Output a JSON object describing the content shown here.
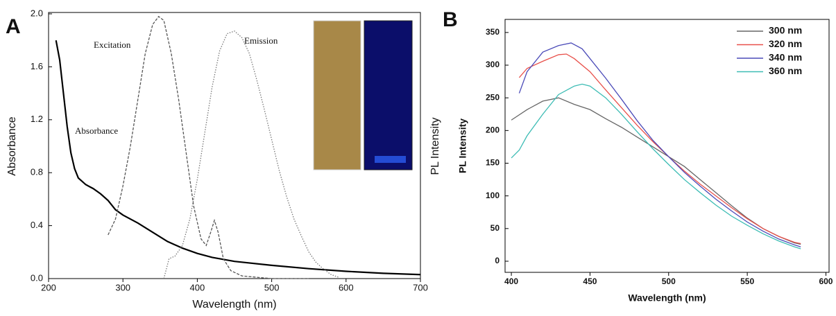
{
  "chart_data": [
    {
      "type": "line",
      "panel_label": "A",
      "x_label": "Wavelength (nm)",
      "y_label": "Absorbance",
      "y2_label": "PL Intensity",
      "xlim": [
        200,
        700
      ],
      "xticks": [
        200,
        300,
        400,
        500,
        600,
        700
      ],
      "ylim": [
        0,
        2.0
      ],
      "yticks": [
        {
          "value": 0,
          "label": "0.0"
        },
        0.4,
        0.8,
        1.2,
        1.6,
        {
          "value": 2,
          "label": "2.0"
        }
      ],
      "series": [
        {
          "name": "Absorbance",
          "color": "#000000",
          "dash": "solid",
          "x": [
            210,
            215,
            220,
            225,
            230,
            235,
            240,
            250,
            260,
            270,
            280,
            290,
            300,
            320,
            340,
            360,
            380,
            400,
            420,
            450,
            500,
            550,
            600,
            650,
            700
          ],
          "values": [
            1.8,
            1.65,
            1.4,
            1.15,
            0.95,
            0.83,
            0.76,
            0.71,
            0.68,
            0.64,
            0.59,
            0.52,
            0.48,
            0.42,
            0.35,
            0.28,
            0.23,
            0.19,
            0.16,
            0.13,
            0.1,
            0.075,
            0.055,
            0.04,
            0.03
          ]
        },
        {
          "name": "Excitation",
          "color": "#555555",
          "dash": "dashed",
          "x": [
            280,
            290,
            300,
            310,
            320,
            330,
            340,
            348,
            355,
            365,
            375,
            385,
            395,
            405,
            412,
            418,
            423,
            428,
            435,
            445,
            460,
            480,
            500,
            550
          ],
          "values": [
            0.33,
            0.45,
            0.7,
            1.0,
            1.35,
            1.7,
            1.92,
            1.98,
            1.95,
            1.7,
            1.35,
            0.95,
            0.55,
            0.3,
            0.25,
            0.35,
            0.44,
            0.35,
            0.15,
            0.06,
            0.02,
            0.01,
            0,
            0
          ]
        },
        {
          "name": "Emission",
          "color": "#777777",
          "dash": "dotted",
          "x": [
            355,
            362,
            370,
            380,
            390,
            400,
            410,
            420,
            430,
            440,
            450,
            460,
            470,
            480,
            490,
            500,
            510,
            520,
            530,
            540,
            550,
            560,
            570,
            580,
            590
          ],
          "values": [
            0,
            0.15,
            0.17,
            0.25,
            0.45,
            0.75,
            1.1,
            1.45,
            1.72,
            1.85,
            1.87,
            1.82,
            1.7,
            1.5,
            1.28,
            1.05,
            0.82,
            0.62,
            0.45,
            0.32,
            0.2,
            0.12,
            0.07,
            0.03,
            0.01
          ]
        }
      ]
    },
    {
      "type": "line",
      "panel_label": "B",
      "x_label": "Wavelength (nm)",
      "y_label": "PL Intensity",
      "legend": "upper right",
      "xlim": [
        396,
        602
      ],
      "xticks": [
        400,
        450,
        500,
        550,
        600
      ],
      "ylim": [
        -17,
        370
      ],
      "yticks": [
        0,
        50,
        100,
        150,
        200,
        250,
        300,
        350
      ],
      "series": [
        {
          "name": "300 nm",
          "color": "#666666",
          "dash": "solid",
          "x": [
            400,
            410,
            420,
            430,
            440,
            450,
            460,
            470,
            480,
            490,
            500,
            510,
            520,
            530,
            540,
            550,
            560,
            570,
            580,
            584
          ],
          "values": [
            216,
            232,
            245,
            250,
            240,
            232,
            218,
            205,
            190,
            175,
            160,
            145,
            125,
            105,
            85,
            66,
            50,
            38,
            28,
            26
          ]
        },
        {
          "name": "320 nm",
          "color": "#e8504a",
          "dash": "solid",
          "x": [
            405,
            410,
            420,
            430,
            435,
            440,
            450,
            460,
            470,
            480,
            490,
            500,
            510,
            520,
            530,
            540,
            550,
            560,
            570,
            580,
            584
          ],
          "values": [
            281,
            295,
            306,
            316,
            317,
            310,
            290,
            262,
            235,
            208,
            183,
            160,
            138,
            118,
            100,
            82,
            65,
            50,
            38,
            29,
            27
          ]
        },
        {
          "name": "340 nm",
          "color": "#4a4ab8",
          "dash": "solid",
          "x": [
            405,
            410,
            420,
            430,
            438,
            445,
            450,
            460,
            470,
            480,
            490,
            500,
            510,
            520,
            530,
            540,
            550,
            560,
            570,
            580,
            584
          ],
          "values": [
            257,
            290,
            320,
            330,
            334,
            325,
            310,
            280,
            248,
            215,
            185,
            160,
            136,
            115,
            95,
            77,
            60,
            46,
            34,
            25,
            22
          ]
        },
        {
          "name": "360 nm",
          "color": "#3cbcb4",
          "dash": "solid",
          "x": [
            400,
            405,
            410,
            420,
            430,
            440,
            445,
            450,
            460,
            470,
            480,
            490,
            500,
            510,
            520,
            530,
            540,
            550,
            560,
            570,
            580,
            584
          ],
          "values": [
            158,
            170,
            192,
            225,
            255,
            268,
            271,
            268,
            250,
            225,
            198,
            172,
            148,
            125,
            105,
            86,
            69,
            55,
            42,
            31,
            22,
            19
          ]
        }
      ]
    }
  ]
}
